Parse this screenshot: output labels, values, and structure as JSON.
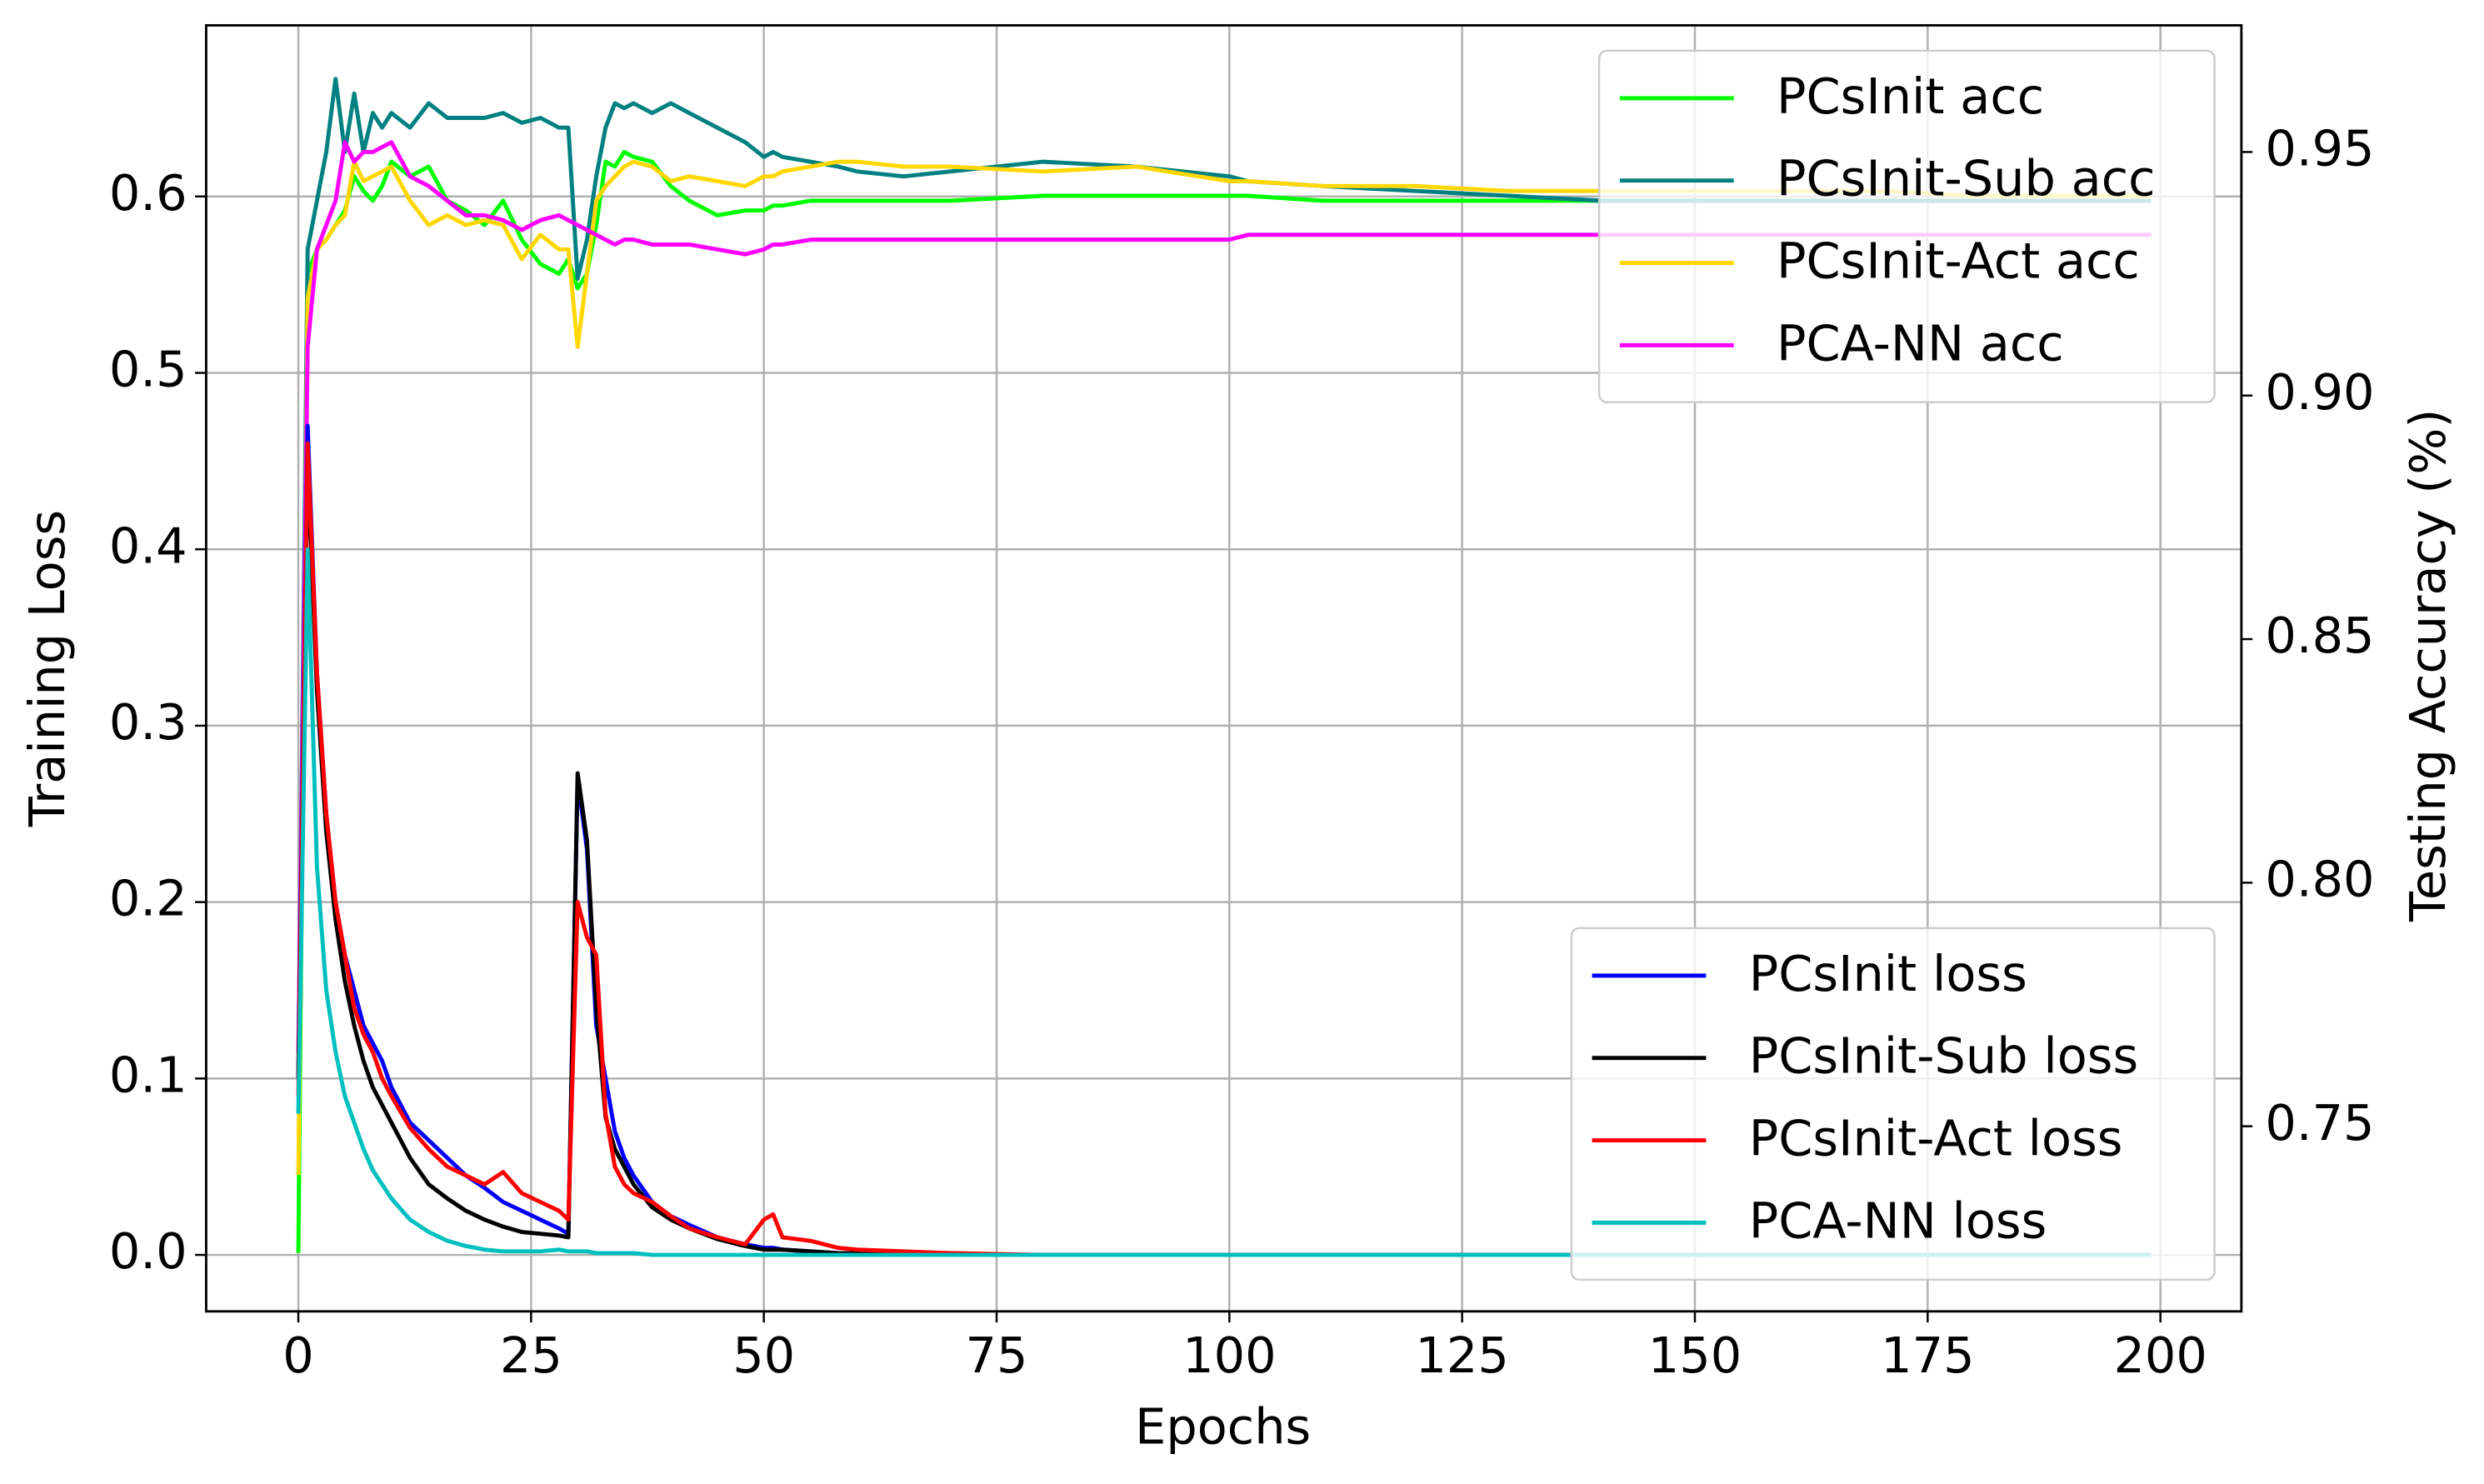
{
  "chart_data": {
    "type": "line",
    "x_label": "Epochs",
    "y_label": "Training Loss",
    "y2_label": "Testing Accuracy (%)",
    "x": [
      0,
      1,
      2,
      3,
      4,
      5,
      6,
      7,
      8,
      9,
      10,
      12,
      14,
      16,
      18,
      20,
      22,
      24,
      26,
      28,
      29,
      30,
      31,
      32,
      33,
      34,
      35,
      36,
      38,
      40,
      42,
      45,
      48,
      50,
      51,
      52,
      55,
      58,
      60,
      65,
      70,
      80,
      90,
      100,
      102,
      110,
      120,
      130,
      140,
      150,
      160,
      170,
      180,
      190,
      199
    ],
    "xlim": [
      -9.9,
      208.7
    ],
    "xticks": [
      0,
      25,
      50,
      75,
      100,
      125,
      150,
      175,
      200
    ],
    "ylim": [
      -0.032,
      0.697
    ],
    "yticks": [
      {
        "value": 0,
        "label": "0.0"
      },
      0.1,
      0.2,
      0.3,
      0.4,
      0.5,
      0.6
    ],
    "y2lim": [
      0.712,
      0.976
    ],
    "y2ticks": [
      0.75,
      {
        "value": 0.8,
        "label": "0.80"
      },
      0.85,
      {
        "value": 0.9,
        "label": "0.90"
      },
      0.95
    ],
    "grid": true,
    "legend_loc": "lower right",
    "y2_legend_loc": "upper right",
    "series": [
      {
        "name": "PCsInit acc",
        "color": "#00ff00",
        "axis": "y2",
        "values": [
          0.724,
          0.925,
          0.93,
          0.932,
          0.935,
          0.938,
          0.945,
          0.942,
          0.94,
          0.943,
          0.948,
          0.945,
          0.947,
          0.94,
          0.938,
          0.935,
          0.94,
          0.932,
          0.927,
          0.925,
          0.928,
          0.922,
          0.925,
          0.935,
          0.948,
          0.947,
          0.95,
          0.949,
          0.948,
          0.943,
          0.94,
          0.937,
          0.938,
          0.938,
          0.939,
          0.939,
          0.94,
          0.94,
          0.94,
          0.94,
          0.94,
          0.941,
          0.941,
          0.941,
          0.941,
          0.94,
          0.94,
          0.94,
          0.94,
          0.94,
          0.94,
          0.94,
          0.94,
          0.94,
          0.94
        ]
      },
      {
        "name": "PCsInit-Sub acc",
        "color": "#008080",
        "axis": "y2",
        "values": [
          0.76,
          0.93,
          0.94,
          0.95,
          0.965,
          0.95,
          0.962,
          0.95,
          0.958,
          0.955,
          0.958,
          0.955,
          0.96,
          0.957,
          0.957,
          0.957,
          0.958,
          0.956,
          0.957,
          0.955,
          0.955,
          0.924,
          0.932,
          0.945,
          0.955,
          0.96,
          0.959,
          0.96,
          0.958,
          0.96,
          0.958,
          0.955,
          0.952,
          0.949,
          0.95,
          0.949,
          0.948,
          0.947,
          0.946,
          0.945,
          0.946,
          0.948,
          0.947,
          0.945,
          0.944,
          0.943,
          0.942,
          0.941,
          0.94,
          0.94,
          0.94,
          0.94,
          0.94,
          0.94,
          0.94
        ]
      },
      {
        "name": "PCsInit-Act acc",
        "color": "#ffd700",
        "axis": "y2",
        "values": [
          0.74,
          0.92,
          0.93,
          0.932,
          0.935,
          0.937,
          0.948,
          0.944,
          0.945,
          0.946,
          0.947,
          0.94,
          0.935,
          0.937,
          0.935,
          0.936,
          0.935,
          0.928,
          0.933,
          0.93,
          0.93,
          0.91,
          0.925,
          0.94,
          0.943,
          0.945,
          0.947,
          0.948,
          0.947,
          0.944,
          0.945,
          0.944,
          0.943,
          0.945,
          0.945,
          0.946,
          0.947,
          0.948,
          0.948,
          0.947,
          0.947,
          0.946,
          0.947,
          0.944,
          0.944,
          0.943,
          0.943,
          0.942,
          0.942,
          0.942,
          0.942,
          0.942,
          0.941,
          0.941,
          0.941
        ]
      },
      {
        "name": "PCA-NN acc",
        "color": "#ff00ff",
        "axis": "y2",
        "values": [
          0.765,
          0.91,
          0.93,
          0.935,
          0.94,
          0.952,
          0.948,
          0.95,
          0.95,
          0.951,
          0.952,
          0.945,
          0.943,
          0.94,
          0.937,
          0.937,
          0.936,
          0.934,
          0.936,
          0.937,
          0.936,
          0.935,
          0.934,
          0.933,
          0.932,
          0.931,
          0.932,
          0.932,
          0.931,
          0.931,
          0.931,
          0.93,
          0.929,
          0.93,
          0.931,
          0.931,
          0.932,
          0.932,
          0.932,
          0.932,
          0.932,
          0.932,
          0.932,
          0.932,
          0.933,
          0.933,
          0.933,
          0.933,
          0.933,
          0.933,
          0.933,
          0.933,
          0.933,
          0.933,
          0.933
        ]
      },
      {
        "name": "PCsInit loss",
        "color": "#0000ff",
        "values": [
          0.1,
          0.47,
          0.33,
          0.25,
          0.2,
          0.17,
          0.15,
          0.13,
          0.12,
          0.11,
          0.095,
          0.075,
          0.065,
          0.055,
          0.045,
          0.038,
          0.03,
          0.025,
          0.02,
          0.015,
          0.012,
          0.27,
          0.23,
          0.13,
          0.1,
          0.07,
          0.055,
          0.045,
          0.03,
          0.022,
          0.017,
          0.01,
          0.006,
          0.004,
          0.004,
          0.003,
          0.002,
          0.001,
          0.001,
          0.0005,
          0,
          0,
          0,
          0,
          0,
          0,
          0,
          0,
          0,
          0,
          0,
          0,
          0,
          0,
          0
        ]
      },
      {
        "name": "PCsInit-Sub loss",
        "color": "#000000",
        "values": [
          0.1,
          0.45,
          0.32,
          0.24,
          0.19,
          0.155,
          0.13,
          0.11,
          0.095,
          0.085,
          0.075,
          0.055,
          0.04,
          0.032,
          0.025,
          0.02,
          0.016,
          0.013,
          0.012,
          0.011,
          0.01,
          0.273,
          0.235,
          0.14,
          0.078,
          0.06,
          0.05,
          0.04,
          0.027,
          0.02,
          0.015,
          0.009,
          0.005,
          0.003,
          0.003,
          0.003,
          0.002,
          0.001,
          0.001,
          0,
          0,
          0,
          0,
          0,
          0,
          0,
          0,
          0,
          0,
          0,
          0,
          0,
          0,
          0,
          0
        ]
      },
      {
        "name": "PCsInit-Act loss",
        "color": "#ff0000",
        "values": [
          0.09,
          0.46,
          0.33,
          0.25,
          0.2,
          0.17,
          0.14,
          0.125,
          0.115,
          0.1,
          0.09,
          0.072,
          0.06,
          0.05,
          0.045,
          0.04,
          0.047,
          0.035,
          0.03,
          0.025,
          0.02,
          0.2,
          0.18,
          0.17,
          0.08,
          0.05,
          0.04,
          0.035,
          0.03,
          0.022,
          0.015,
          0.01,
          0.006,
          0.02,
          0.023,
          0.01,
          0.008,
          0.004,
          0.003,
          0.002,
          0.001,
          0,
          0,
          0,
          0,
          0,
          0,
          0,
          0,
          0,
          0,
          0,
          0,
          0,
          0
        ]
      },
      {
        "name": "PCA-NN loss",
        "color": "#00bfbf",
        "values": [
          0.08,
          0.4,
          0.22,
          0.15,
          0.115,
          0.09,
          0.075,
          0.06,
          0.048,
          0.04,
          0.032,
          0.02,
          0.013,
          0.008,
          0.005,
          0.003,
          0.002,
          0.002,
          0.002,
          0.003,
          0.002,
          0.002,
          0.002,
          0.001,
          0.001,
          0.001,
          0.001,
          0.001,
          0,
          0,
          0,
          0,
          0,
          0,
          0,
          0,
          0,
          0,
          0,
          0,
          0,
          0,
          0,
          0,
          0,
          0,
          0,
          0,
          0,
          0,
          0,
          0,
          0,
          0,
          0
        ]
      }
    ]
  }
}
